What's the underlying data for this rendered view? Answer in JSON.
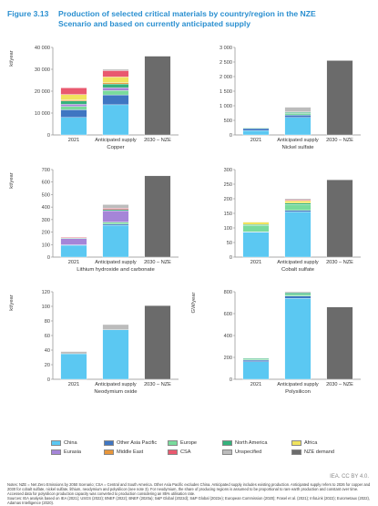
{
  "title": {
    "figure": "Figure 3.13",
    "line1": "Production of selected critical materials by country/region in the NZE",
    "line2": "Scenario and based on currently anticipated supply"
  },
  "colors": {
    "China": "#5bc8f2",
    "Other Asia Pacific": "#3f76c2",
    "Europe": "#79db9c",
    "Eurasia": "#a585d8",
    "North America": "#35b27c",
    "Middle East": "#e8963a",
    "Africa": "#f0e35e",
    "CSA": "#e9596f",
    "Unspecified": "#bcbcbc",
    "NZE demand": "#6b6b6b"
  },
  "chart_data": [
    {
      "type": "bar",
      "subtitle": "Copper",
      "ylabel": "kt/year",
      "ylim": [
        0,
        40000
      ],
      "yticks": [
        0,
        10000,
        20000,
        30000,
        40000
      ],
      "ytick_labels": [
        "0",
        "10 000",
        "20 000",
        "30 000",
        "40 000"
      ],
      "categories": [
        "2021",
        "Anticipated supply",
        "2030 – NZE"
      ],
      "series": [
        {
          "name": "China",
          "values": [
            8000,
            13800,
            0
          ]
        },
        {
          "name": "Other Asia Pacific",
          "values": [
            3500,
            4500,
            0
          ]
        },
        {
          "name": "Europe",
          "values": [
            1500,
            2000,
            0
          ]
        },
        {
          "name": "Eurasia",
          "values": [
            1000,
            1300,
            0
          ]
        },
        {
          "name": "North America",
          "values": [
            1500,
            1700,
            0
          ]
        },
        {
          "name": "Middle East",
          "values": [
            500,
            600,
            0
          ]
        },
        {
          "name": "Africa",
          "values": [
            2500,
            2600,
            0
          ]
        },
        {
          "name": "CSA",
          "values": [
            3000,
            2900,
            0
          ]
        },
        {
          "name": "Unspecified",
          "values": [
            0,
            600,
            0
          ]
        },
        {
          "name": "NZE demand",
          "values": [
            0,
            0,
            36000
          ]
        }
      ]
    },
    {
      "type": "bar",
      "subtitle": "Nickel sulfate",
      "ylabel": "",
      "ylim": [
        0,
        3000
      ],
      "yticks": [
        0,
        500,
        1000,
        1500,
        2000,
        2500,
        3000
      ],
      "ytick_labels": [
        "0",
        "500",
        "1 000",
        "1 500",
        "2 000",
        "2 500",
        "3 000"
      ],
      "categories": [
        "2021",
        "Anticipated supply",
        "2030 – NZE"
      ],
      "series": [
        {
          "name": "China",
          "values": [
            150,
            600,
            0
          ]
        },
        {
          "name": "Other Asia Pacific",
          "values": [
            70,
            80,
            0
          ]
        },
        {
          "name": "Europe",
          "values": [
            20,
            60,
            0
          ]
        },
        {
          "name": "Eurasia",
          "values": [
            0,
            20,
            0
          ]
        },
        {
          "name": "North America",
          "values": [
            0,
            30,
            0
          ]
        },
        {
          "name": "Unspecified",
          "values": [
            0,
            160,
            0
          ]
        },
        {
          "name": "NZE demand",
          "values": [
            0,
            0,
            2550
          ]
        }
      ]
    },
    {
      "type": "bar",
      "subtitle": "Lithium hydroxide and carbonate",
      "ylabel": "kt/year",
      "ylim": [
        0,
        700
      ],
      "yticks": [
        0,
        100,
        200,
        300,
        400,
        500,
        600,
        700
      ],
      "ytick_labels": [
        "0",
        "100",
        "200",
        "300",
        "400",
        "500",
        "600",
        "700"
      ],
      "categories": [
        "2021",
        "Anticipated supply",
        "2030 – NZE"
      ],
      "series": [
        {
          "name": "China",
          "values": [
            95,
            255,
            0
          ]
        },
        {
          "name": "Other Asia Pacific",
          "values": [
            3,
            10,
            0
          ]
        },
        {
          "name": "Europe",
          "values": [
            0,
            15,
            0
          ]
        },
        {
          "name": "Eurasia",
          "values": [
            50,
            90,
            0
          ]
        },
        {
          "name": "North America",
          "values": [
            5,
            10,
            0
          ]
        },
        {
          "name": "CSA",
          "values": [
            5,
            10,
            0
          ]
        },
        {
          "name": "Unspecified",
          "values": [
            0,
            30,
            0
          ]
        },
        {
          "name": "NZE demand",
          "values": [
            0,
            0,
            650
          ]
        }
      ]
    },
    {
      "type": "bar",
      "subtitle": "Cobalt sulfate",
      "ylabel": "",
      "ylim": [
        0,
        300
      ],
      "yticks": [
        0,
        50,
        100,
        150,
        200,
        250,
        300
      ],
      "ytick_labels": [
        "0",
        "50",
        "100",
        "150",
        "200",
        "250",
        "300"
      ],
      "categories": [
        "2021",
        "Anticipated supply",
        "2030 – NZE"
      ],
      "series": [
        {
          "name": "China",
          "values": [
            85,
            155,
            0
          ]
        },
        {
          "name": "Other Asia Pacific",
          "values": [
            2,
            5,
            0
          ]
        },
        {
          "name": "Europe",
          "values": [
            22,
            20,
            0
          ]
        },
        {
          "name": "North America",
          "values": [
            3,
            5,
            0
          ]
        },
        {
          "name": "Africa",
          "values": [
            8,
            8,
            0
          ]
        },
        {
          "name": "CSA",
          "values": [
            0,
            3,
            0
          ]
        },
        {
          "name": "Unspecified",
          "values": [
            0,
            4,
            0
          ]
        },
        {
          "name": "NZE demand",
          "values": [
            0,
            0,
            265
          ]
        }
      ]
    },
    {
      "type": "bar",
      "subtitle": "Neodymium oxide",
      "ylabel": "kt/year",
      "ylim": [
        0,
        120
      ],
      "yticks": [
        0,
        20,
        40,
        60,
        80,
        100,
        120
      ],
      "ytick_labels": [
        "0",
        "20",
        "40",
        "60",
        "80",
        "100",
        "120"
      ],
      "categories": [
        "2021",
        "Anticipated supply",
        "2030 – NZE"
      ],
      "series": [
        {
          "name": "China",
          "values": [
            35,
            68,
            0
          ]
        },
        {
          "name": "Unspecified",
          "values": [
            3,
            7,
            0
          ]
        },
        {
          "name": "NZE demand",
          "values": [
            0,
            0,
            101
          ]
        }
      ]
    },
    {
      "type": "bar",
      "subtitle": "Polysilicon",
      "ylabel": "GW/year",
      "ylim": [
        0,
        800
      ],
      "yticks": [
        0,
        200,
        400,
        600,
        800
      ],
      "ytick_labels": [
        "0",
        "200",
        "400",
        "600",
        "800"
      ],
      "categories": [
        "2021",
        "Anticipated supply",
        "2030 – NZE"
      ],
      "series": [
        {
          "name": "China",
          "values": [
            160,
            740,
            0
          ]
        },
        {
          "name": "Other Asia Pacific",
          "values": [
            15,
            20,
            0
          ]
        },
        {
          "name": "Europe",
          "values": [
            8,
            15,
            0
          ]
        },
        {
          "name": "North America",
          "values": [
            8,
            15,
            0
          ]
        },
        {
          "name": "Unspecified",
          "values": [
            0,
            10,
            0
          ]
        },
        {
          "name": "NZE demand",
          "values": [
            0,
            0,
            660
          ]
        }
      ]
    }
  ],
  "legend": [
    {
      "label": "China",
      "color": "#5bc8f2"
    },
    {
      "label": "Other Asia Pacific",
      "color": "#3f76c2"
    },
    {
      "label": "Europe",
      "color": "#79db9c"
    },
    {
      "label": "North America",
      "color": "#35b27c"
    },
    {
      "label": "Africa",
      "color": "#f0e35e"
    },
    {
      "label": "Eurasia",
      "color": "#a585d8"
    },
    {
      "label": "Middle East",
      "color": "#e8963a"
    },
    {
      "label": "CSA",
      "color": "#e9596f"
    },
    {
      "label": "Unspecified",
      "color": "#bcbcbc"
    },
    {
      "label": "NZE demand",
      "color": "#6b6b6b"
    }
  ],
  "credit": "IEA. CC BY 4.0.",
  "notes": {
    "line1": "Notes: NZE = Net Zero Emissions by 2050 Scenario; CSA = Central and South America. Other Asia Pacific excludes China. Anticipated supply includes existing production. Anticipated supply refers to 2026 for copper and 2030 for cobalt sulfate, nickel sulfate, lithium, neodymium and polysilicon (see note 3). For neodymium, the share of producing regions is assumed to be proportional to rare earth production and constant over time. Accessed data for polysilicon production capacity was converted to production considering an 85% utilisation rate.",
    "line2": "Sources: IEA analysis based on IEA (2021); USGS (2022); BNEF (2022); BNEF (2020a); S&P Global (2022d); S&P Global (2022e); European Commission (2020); Frasel et al. (2021); InfoLink (2022); Eurometaux (2022), Adamas Intelligence (2020)."
  }
}
